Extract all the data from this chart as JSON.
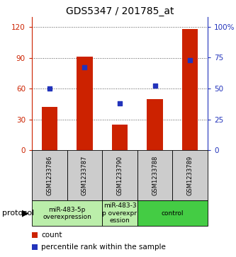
{
  "title": "GDS5347 / 201785_at",
  "samples": [
    "GSM1233786",
    "GSM1233787",
    "GSM1233790",
    "GSM1233788",
    "GSM1233789"
  ],
  "bar_values": [
    42,
    91,
    25,
    50,
    118
  ],
  "scatter_values": [
    50,
    67,
    38,
    52,
    73
  ],
  "ylim_left": [
    0,
    130
  ],
  "ylim_right": [
    0,
    108
  ],
  "yticks_left": [
    0,
    30,
    60,
    90,
    120
  ],
  "yticks_right": [
    0,
    25,
    50,
    75,
    100
  ],
  "ytick_labels_right": [
    "0",
    "25",
    "50",
    "75",
    "100%"
  ],
  "bar_color": "#cc2200",
  "scatter_color": "#2233bb",
  "grid_color": "#888888",
  "protocol_groups": [
    {
      "label": "miR-483-5p\noverexpression",
      "start": 0,
      "end": 2,
      "color": "#bbeeaa"
    },
    {
      "label": "miR-483-3\np overexpr\nession",
      "start": 2,
      "end": 3,
      "color": "#bbeeaa"
    },
    {
      "label": "control",
      "start": 3,
      "end": 5,
      "color": "#44cc44"
    }
  ],
  "protocol_label": "protocol",
  "legend_count_label": "count",
  "legend_pct_label": "percentile rank within the sample",
  "sample_box_color": "#cccccc",
  "title_fontsize": 10,
  "tick_fontsize": 7.5,
  "sample_fontsize": 6,
  "proto_fontsize": 6.5,
  "legend_fontsize": 7.5
}
